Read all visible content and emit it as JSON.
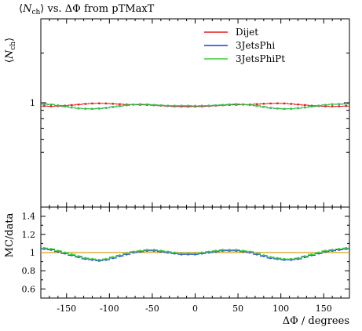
{
  "title": "⟨N_ch⟩ vs. ΔΦ from pTMaxT",
  "chart_data": [
    {
      "panel": "main",
      "type": "line",
      "title": "⟨N_ch⟩ vs. ΔΦ from pTMaxT",
      "ylabel": "⟨N_ch⟩",
      "xlim": [
        -180,
        180
      ],
      "ylog": true,
      "ytick_labels": [
        "1"
      ],
      "legend_position": "top-right",
      "x": [
        -176,
        -168,
        -160,
        -152,
        -144,
        -136,
        -128,
        -120,
        -112,
        -104,
        -96,
        -88,
        -80,
        -72,
        -64,
        -56,
        -48,
        -40,
        -32,
        -24,
        -16,
        -8,
        0,
        8,
        16,
        24,
        32,
        40,
        48,
        56,
        64,
        72,
        80,
        88,
        96,
        104,
        112,
        120,
        128,
        136,
        144,
        152,
        160,
        168,
        176
      ],
      "series": [
        {
          "name": "Dijet",
          "color": "#e41a1c",
          "values": [
            0.955,
            0.952,
            0.955,
            0.96,
            0.968,
            0.976,
            0.984,
            0.99,
            0.992,
            0.99,
            0.986,
            0.98,
            0.976,
            0.974,
            0.972,
            0.97,
            0.966,
            0.96,
            0.955,
            0.95,
            0.948,
            0.947,
            0.948,
            0.95,
            0.955,
            0.96,
            0.966,
            0.97,
            0.972,
            0.974,
            0.976,
            0.98,
            0.986,
            0.99,
            0.992,
            0.99,
            0.984,
            0.976,
            0.968,
            0.96,
            0.955,
            0.952,
            0.95,
            0.952,
            0.955
          ]
        },
        {
          "name": "3JetsPhi",
          "color": "#1f3fd6",
          "values": [
            0.982,
            0.975,
            0.962,
            0.948,
            0.936,
            0.925,
            0.92,
            0.918,
            0.922,
            0.93,
            0.942,
            0.955,
            0.966,
            0.974,
            0.978,
            0.976,
            0.97,
            0.964,
            0.96,
            0.958,
            0.958,
            0.958,
            0.956,
            0.958,
            0.96,
            0.964,
            0.97,
            0.976,
            0.98,
            0.977,
            0.97,
            0.958,
            0.944,
            0.93,
            0.922,
            0.918,
            0.92,
            0.926,
            0.936,
            0.948,
            0.96,
            0.97,
            0.978,
            0.982,
            0.985
          ]
        },
        {
          "name": "3JetsPhiPt",
          "color": "#33cc33",
          "values": [
            0.984,
            0.976,
            0.963,
            0.949,
            0.937,
            0.926,
            0.921,
            0.919,
            0.923,
            0.931,
            0.943,
            0.956,
            0.967,
            0.975,
            0.979,
            0.977,
            0.971,
            0.965,
            0.961,
            0.959,
            0.959,
            0.959,
            0.957,
            0.959,
            0.961,
            0.965,
            0.971,
            0.977,
            0.981,
            0.978,
            0.971,
            0.959,
            0.945,
            0.931,
            0.923,
            0.919,
            0.921,
            0.927,
            0.937,
            0.949,
            0.961,
            0.971,
            0.979,
            0.983,
            0.987
          ]
        }
      ]
    },
    {
      "panel": "ratio",
      "type": "line",
      "ylabel": "MC/data",
      "xlabel": "ΔΦ / degrees",
      "xlim": [
        -180,
        180
      ],
      "ylim": [
        0.5,
        1.5
      ],
      "xticks": [
        -150,
        -100,
        -50,
        0,
        50,
        100,
        150
      ],
      "yticks": [
        0.6,
        0.8,
        1,
        1.2,
        1.4
      ],
      "reference_line": 1,
      "reference_color": "#d4a017",
      "x": [
        -176,
        -168,
        -160,
        -152,
        -144,
        -136,
        -128,
        -120,
        -112,
        -104,
        -96,
        -88,
        -80,
        -72,
        -64,
        -56,
        -48,
        -40,
        -32,
        -24,
        -16,
        -8,
        0,
        8,
        16,
        24,
        32,
        40,
        48,
        56,
        64,
        72,
        80,
        88,
        96,
        104,
        112,
        120,
        128,
        136,
        144,
        152,
        160,
        168,
        176
      ],
      "series": [
        {
          "name": "3JetsPhi",
          "color": "#1f3fd6",
          "values": [
            1.04,
            1.03,
            1.01,
            0.99,
            0.97,
            0.95,
            0.93,
            0.92,
            0.91,
            0.92,
            0.94,
            0.96,
            0.98,
            1.0,
            1.01,
            1.02,
            1.02,
            1.01,
            1.0,
            0.99,
            0.98,
            0.98,
            0.98,
            0.99,
            1.0,
            1.01,
            1.02,
            1.02,
            1.02,
            1.01,
            1.0,
            0.98,
            0.96,
            0.94,
            0.93,
            0.92,
            0.92,
            0.93,
            0.95,
            0.97,
            0.99,
            1.01,
            1.02,
            1.03,
            1.04
          ]
        },
        {
          "name": "3JetsPhiPt",
          "color": "#33cc33",
          "values": [
            1.05,
            1.04,
            1.02,
            1.0,
            0.98,
            0.96,
            0.94,
            0.93,
            0.92,
            0.93,
            0.95,
            0.97,
            0.99,
            1.01,
            1.02,
            1.03,
            1.03,
            1.02,
            1.01,
            1.0,
            0.99,
            0.99,
            0.99,
            1.0,
            1.01,
            1.02,
            1.03,
            1.03,
            1.03,
            1.02,
            1.01,
            0.99,
            0.97,
            0.95,
            0.94,
            0.93,
            0.93,
            0.94,
            0.96,
            0.98,
            1.0,
            1.02,
            1.03,
            1.04,
            1.05
          ]
        }
      ]
    }
  ]
}
